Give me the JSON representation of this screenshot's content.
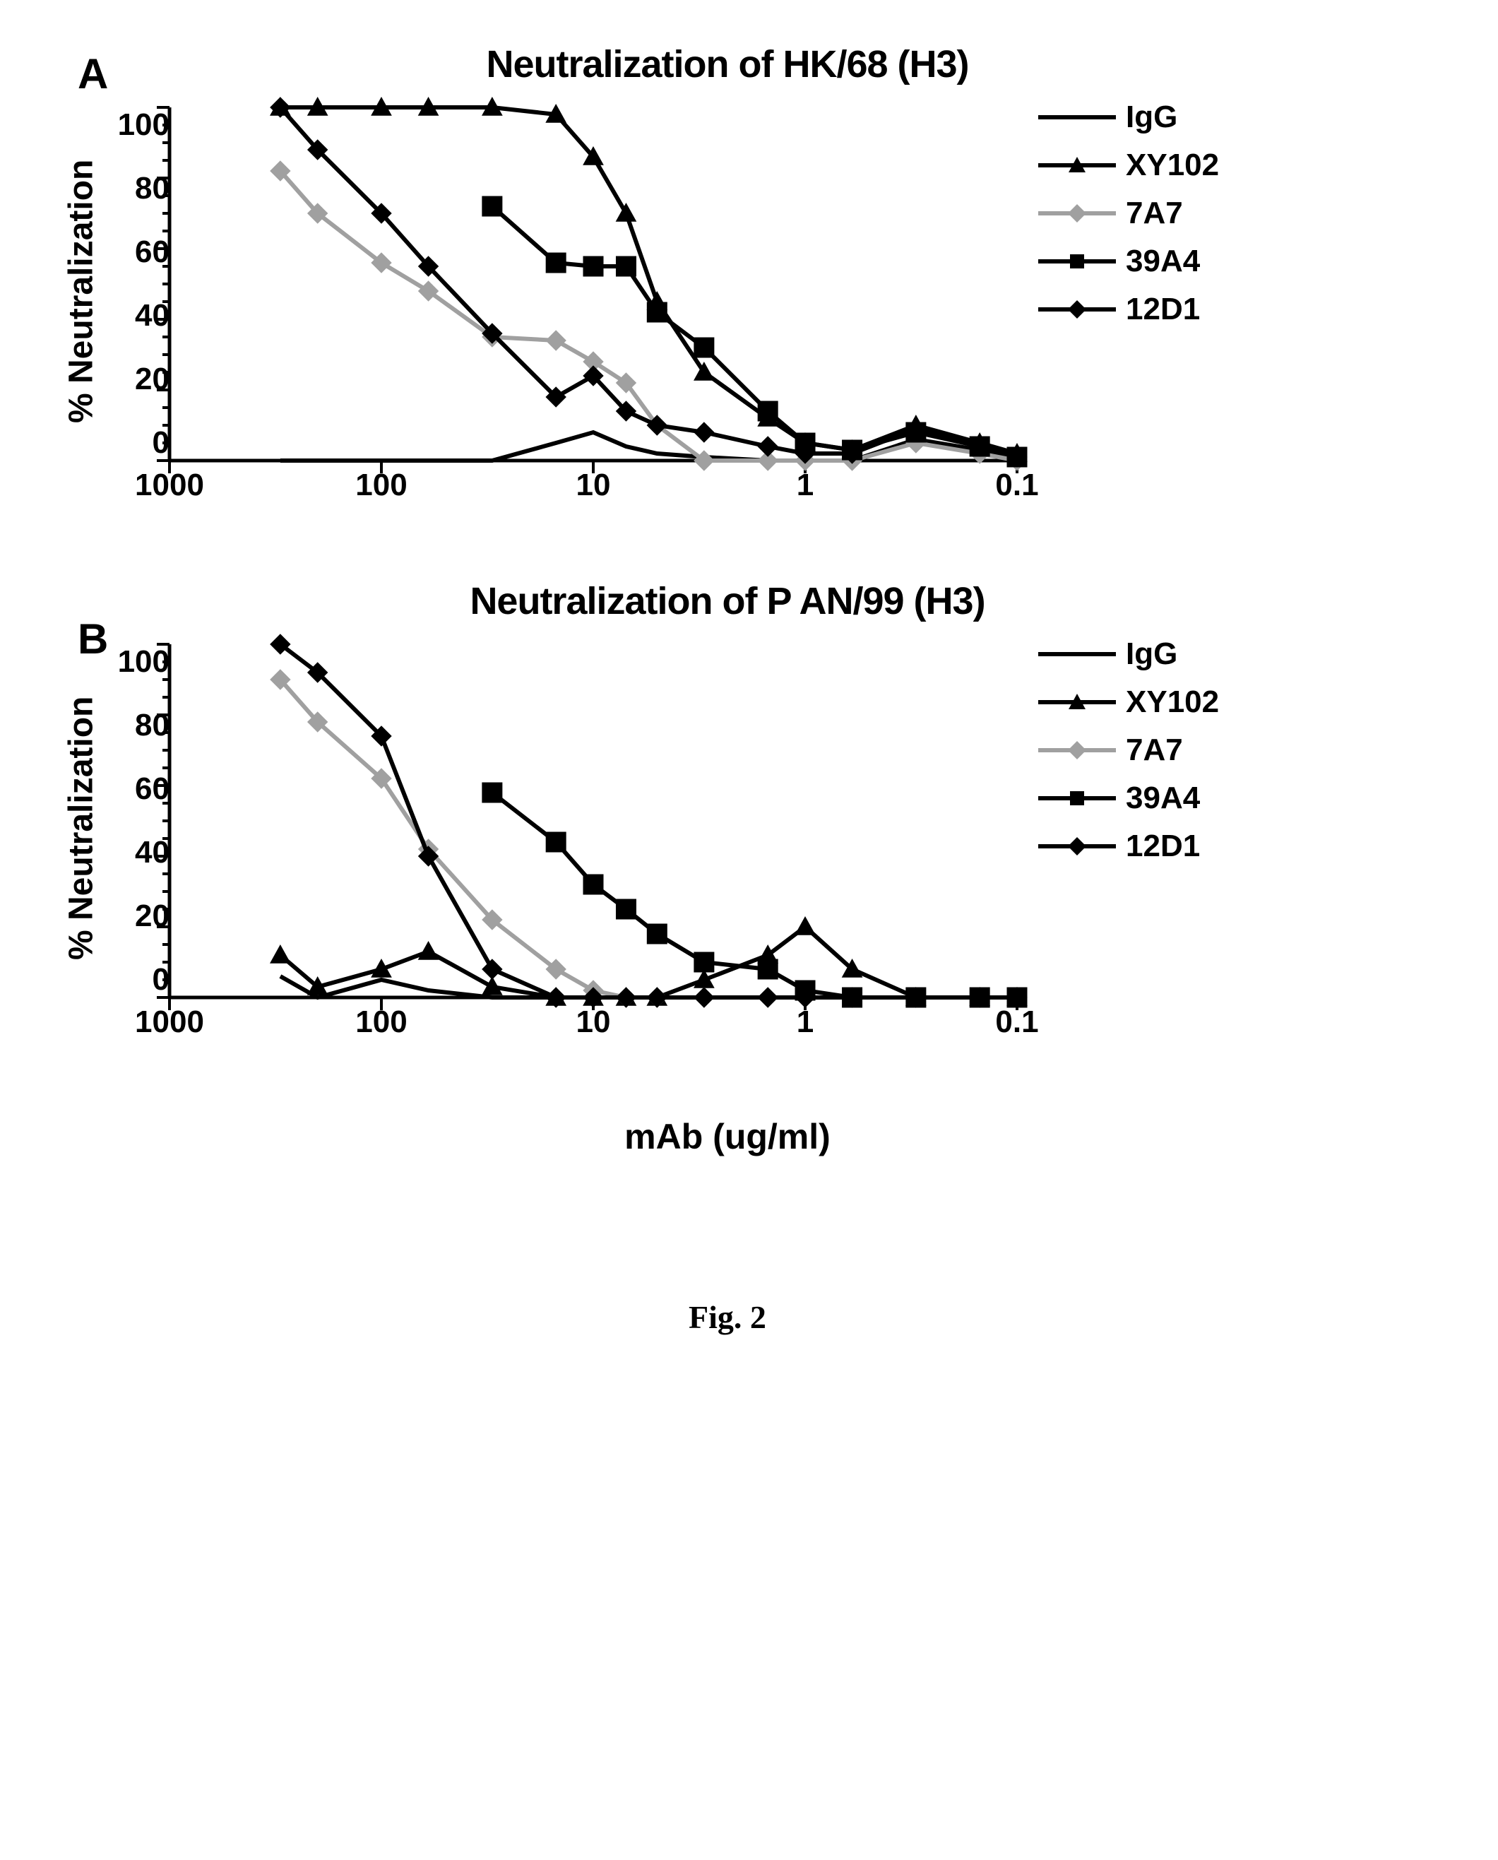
{
  "figure_caption": "Fig. 2",
  "shared_xlabel": "mAb (ug/ml)",
  "panel_A": {
    "label": "A",
    "title": "Neutralization of HK/68 (H3)",
    "ylabel": "% Neutralization",
    "ylim": [
      0,
      100
    ],
    "ytick_step": 20,
    "yticks": [
      100,
      80,
      60,
      40,
      20,
      0
    ],
    "xscale": "log",
    "xlim": [
      1000,
      0.1
    ],
    "xticks": [
      1000,
      100,
      10,
      1,
      0.1
    ],
    "background_color": "#ffffff",
    "axis_color": "#000000",
    "axis_width": 5,
    "line_width": 6,
    "marker_size": 18,
    "series": {
      "IgG": {
        "color": "#000000",
        "marker": "none",
        "x": [
          300,
          200,
          100,
          60,
          30,
          15,
          10,
          7,
          5,
          3,
          1.5,
          1,
          0.6,
          0.3,
          0.15,
          0.1
        ],
        "y": [
          0,
          0,
          0,
          0,
          0,
          5,
          8,
          4,
          2,
          1,
          0,
          0,
          0,
          6,
          3,
          1
        ]
      },
      "XY102": {
        "color": "#000000",
        "marker": "triangle",
        "x": [
          300,
          200,
          100,
          60,
          30,
          15,
          10,
          7,
          5,
          3,
          1.5,
          1,
          0.6,
          0.3,
          0.15,
          0.1
        ],
        "y": [
          100,
          100,
          100,
          100,
          100,
          98,
          86,
          70,
          45,
          25,
          12,
          5,
          3,
          10,
          5,
          2
        ]
      },
      "7A7": {
        "color": "#a0a0a0",
        "marker": "diamond",
        "x": [
          300,
          200,
          100,
          60,
          30,
          15,
          10,
          7,
          5,
          3,
          1.5,
          1,
          0.6,
          0.3,
          0.15,
          0.1
        ],
        "y": [
          82,
          70,
          56,
          48,
          35,
          34,
          28,
          22,
          10,
          0,
          0,
          0,
          0,
          5,
          2,
          0
        ]
      },
      "39A4": {
        "color": "#000000",
        "marker": "square",
        "x": [
          30,
          15,
          10,
          7,
          5,
          3,
          1.5,
          1,
          0.6,
          0.3,
          0.15,
          0.1
        ],
        "y": [
          72,
          56,
          55,
          55,
          42,
          32,
          14,
          5,
          3,
          8,
          4,
          1
        ]
      },
      "12D1": {
        "color": "#000000",
        "marker": "diamond",
        "x": [
          300,
          200,
          100,
          60,
          30,
          15,
          10,
          7,
          5,
          3,
          1.5,
          1,
          0.6,
          0.3,
          0.15,
          0.1
        ],
        "y": [
          100,
          88,
          70,
          55,
          36,
          18,
          24,
          14,
          10,
          8,
          4,
          2,
          2,
          9,
          4,
          1
        ]
      }
    }
  },
  "panel_B": {
    "label": "B",
    "title": "Neutralization of P AN/99 (H3)",
    "ylabel": "% Neutralization",
    "ylim": [
      0,
      100
    ],
    "ytick_step": 20,
    "yticks": [
      100,
      80,
      60,
      40,
      20,
      0
    ],
    "xscale": "log",
    "xlim": [
      1000,
      0.1
    ],
    "xticks": [
      1000,
      100,
      10,
      1,
      0.1
    ],
    "background_color": "#ffffff",
    "axis_color": "#000000",
    "axis_width": 5,
    "line_width": 6,
    "marker_size": 18,
    "series": {
      "IgG": {
        "color": "#000000",
        "marker": "none",
        "x": [
          300,
          200,
          100,
          60,
          30,
          15,
          10,
          7,
          5,
          3,
          1.5,
          1,
          0.6,
          0.3,
          0.15,
          0.1
        ],
        "y": [
          6,
          0,
          5,
          2,
          0,
          0,
          0,
          0,
          0,
          0,
          0,
          0,
          0,
          0,
          0,
          0
        ]
      },
      "XY102": {
        "color": "#000000",
        "marker": "triangle",
        "x": [
          300,
          200,
          100,
          60,
          30,
          15,
          10,
          7,
          5,
          3,
          1.5,
          1,
          0.6,
          0.3,
          0.15,
          0.1
        ],
        "y": [
          12,
          3,
          8,
          13,
          3,
          0,
          0,
          0,
          0,
          5,
          12,
          20,
          8,
          0,
          0,
          0
        ]
      },
      "7A7": {
        "color": "#a0a0a0",
        "marker": "diamond",
        "x": [
          300,
          200,
          100,
          60,
          30,
          15,
          10,
          7,
          5,
          3,
          1.5,
          1,
          0.6,
          0.3,
          0.15,
          0.1
        ],
        "y": [
          90,
          78,
          62,
          42,
          22,
          8,
          2,
          0,
          0,
          0,
          0,
          0,
          0,
          0,
          0,
          0
        ]
      },
      "39A4": {
        "color": "#000000",
        "marker": "square",
        "x": [
          30,
          15,
          10,
          7,
          5,
          3,
          1.5,
          1,
          0.6,
          0.3,
          0.15,
          0.1
        ],
        "y": [
          58,
          44,
          32,
          25,
          18,
          10,
          8,
          2,
          0,
          0,
          0,
          0
        ]
      },
      "12D1": {
        "color": "#000000",
        "marker": "diamond",
        "x": [
          300,
          200,
          100,
          60,
          30,
          15,
          10,
          7,
          5,
          3,
          1.5,
          1,
          0.6,
          0.3,
          0.15,
          0.1
        ],
        "y": [
          100,
          92,
          74,
          40,
          8,
          0,
          0,
          0,
          0,
          0,
          0,
          0,
          0,
          0,
          0,
          0
        ]
      }
    }
  },
  "legend": {
    "items": [
      {
        "label": "IgG",
        "color": "#000000",
        "marker": "none"
      },
      {
        "label": "XY102",
        "color": "#000000",
        "marker": "triangle"
      },
      {
        "label": "7A7",
        "color": "#a0a0a0",
        "marker": "diamond"
      },
      {
        "label": "39A4",
        "color": "#000000",
        "marker": "square"
      },
      {
        "label": "12D1",
        "color": "#000000",
        "marker": "diamond"
      }
    ]
  }
}
